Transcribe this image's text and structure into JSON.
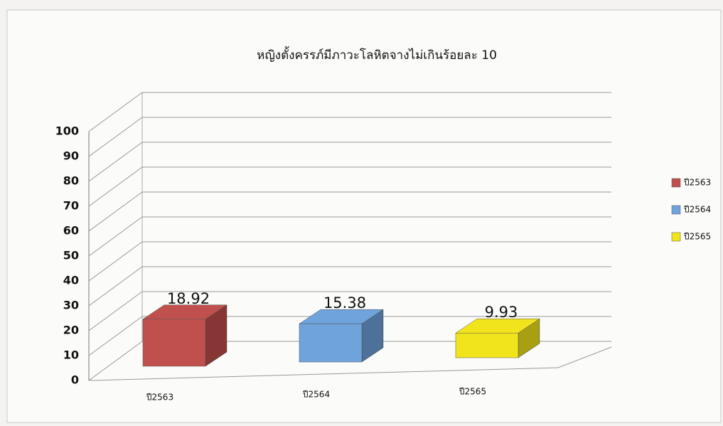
{
  "chart_data": {
    "type": "bar3d",
    "title": "หญิงตั้งครรภ์มีภาวะโลหิตจางไม่เกินร้อยละ 10",
    "categories": [
      "ปี2563",
      "ปี2564",
      "ปี2565"
    ],
    "values": [
      18.92,
      15.38,
      9.93
    ],
    "colors": [
      "#c0504d",
      "#6fa3dc",
      "#f2e41c"
    ],
    "ylim": [
      0,
      100
    ],
    "yticks": [
      0,
      10,
      20,
      30,
      40,
      50,
      60,
      70,
      80,
      90,
      100
    ],
    "grid": true,
    "legend": "right"
  }
}
